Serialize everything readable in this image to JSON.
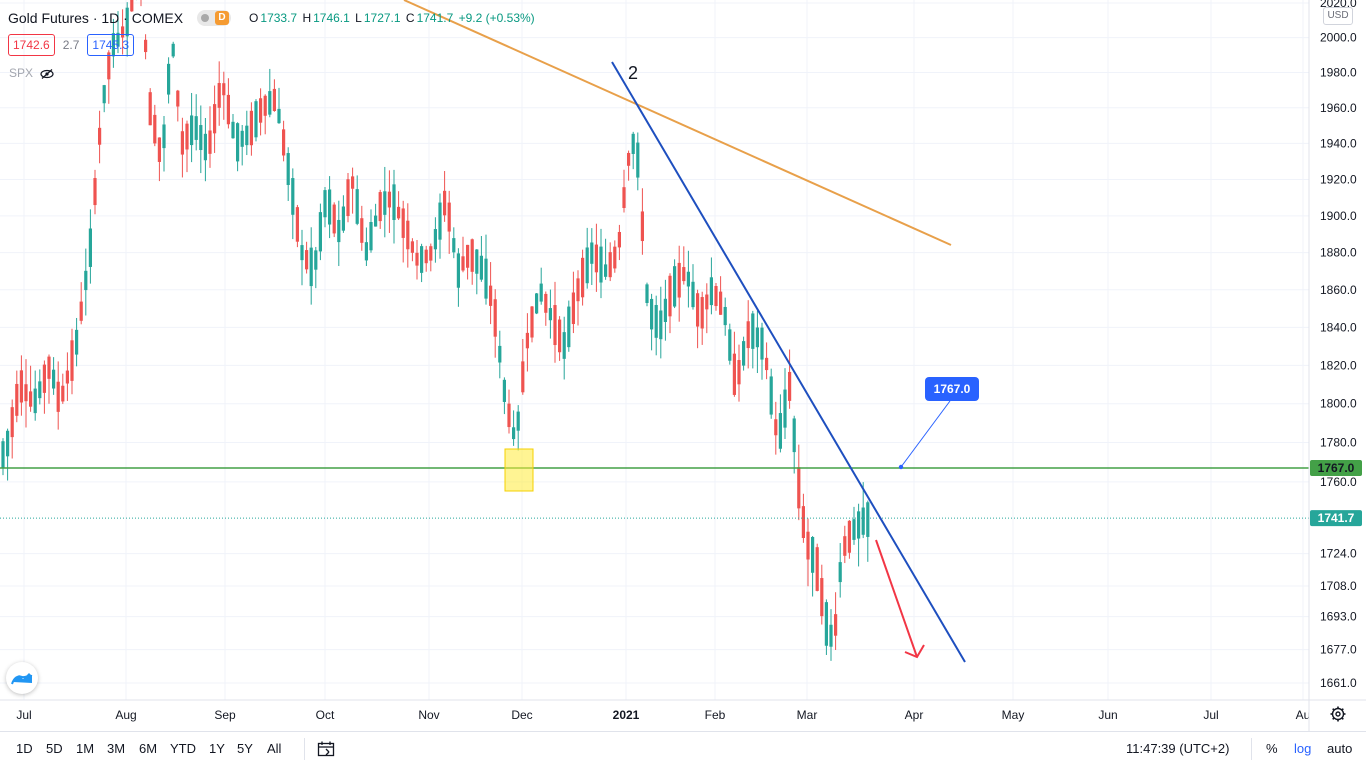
{
  "header": {
    "symbol": "Gold Futures · 1D · COMEX",
    "delayed_badge": "D",
    "ohlc": {
      "o_label": "O",
      "o_value": "1733.7",
      "h_label": "H",
      "h_value": "1746.1",
      "l_label": "L",
      "l_value": "1727.1",
      "c_label": "C",
      "c_value": "1741.7",
      "change": "+9.2 (+0.53%)"
    },
    "bid": "1742.6",
    "spread": "2.7",
    "ask": "1745.3",
    "compare_symbol": "SPX"
  },
  "axis": {
    "currency": "USD",
    "price_ticks": [
      "2020.0",
      "2000.0",
      "1980.0",
      "1960.0",
      "1940.0",
      "1920.0",
      "1900.0",
      "1880.0",
      "1860.0",
      "1840.0",
      "1820.0",
      "1800.0",
      "1780.0",
      "1760.0",
      "1724.0",
      "1708.0",
      "1693.0",
      "1677.0",
      "1661.0"
    ],
    "time_ticks": [
      "Jul",
      "Aug",
      "Sep",
      "Oct",
      "Nov",
      "Dec",
      "2021",
      "Feb",
      "Mar",
      "Apr",
      "May",
      "Jun",
      "Jul",
      "Au"
    ]
  },
  "chart_data": {
    "type": "candlestick",
    "instrument": "Gold Futures",
    "interval": "1D",
    "exchange": "COMEX",
    "y_ticks": [
      2020,
      2000,
      1980,
      1960,
      1940,
      1920,
      1900,
      1880,
      1860,
      1840,
      1820,
      1800,
      1780,
      1760,
      1724,
      1708,
      1693,
      1677,
      1661
    ],
    "x_ticks": [
      "Jul",
      "Aug",
      "Sep",
      "Oct",
      "Nov",
      "Dec",
      "2021",
      "Feb",
      "Mar",
      "Apr",
      "May",
      "Jun",
      "Jul",
      "Au"
    ],
    "colors": {
      "up": "#26a69a",
      "down": "#ef5350"
    },
    "last_price": 1741.7,
    "horizontal_level": {
      "value": 1767.0,
      "label": "1767.0",
      "color": "#43a047"
    },
    "annotations": {
      "label_two": "2",
      "callout": "1767.0",
      "current_price_label": "1741.7"
    }
  },
  "bottom": {
    "ranges": [
      "1D",
      "5D",
      "1M",
      "3M",
      "6M",
      "YTD",
      "1Y",
      "5Y",
      "All"
    ],
    "clock": "11:47:39 (UTC+2)",
    "percent": "%",
    "log": "log",
    "auto": "auto"
  }
}
